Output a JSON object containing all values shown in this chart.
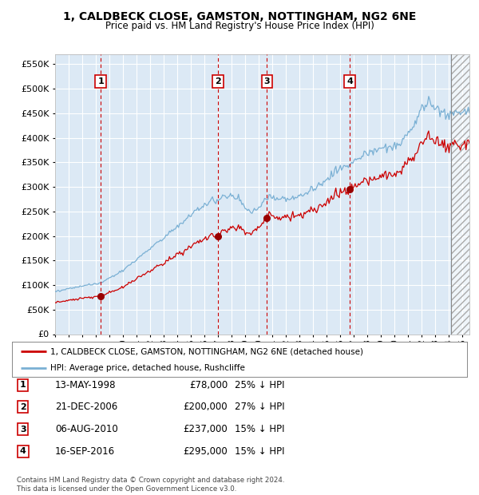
{
  "title": "1, CALDBECK CLOSE, GAMSTON, NOTTINGHAM, NG2 6NE",
  "subtitle": "Price paid vs. HM Land Registry's House Price Index (HPI)",
  "hpi_line_color": "#7ab0d4",
  "price_line_color": "#cc0000",
  "price_dot_color": "#990000",
  "plot_bg_color": "#dce9f5",
  "grid_color": "#ffffff",
  "dashed_color": "#cc0000",
  "fig_bg_color": "#ffffff",
  "transactions": [
    {
      "num": 1,
      "price": 78000,
      "x_year": 1998.36
    },
    {
      "num": 2,
      "price": 200000,
      "x_year": 2006.97
    },
    {
      "num": 3,
      "price": 237000,
      "x_year": 2010.6
    },
    {
      "num": 4,
      "price": 295000,
      "x_year": 2016.71
    }
  ],
  "legend_entries": [
    "1, CALDBECK CLOSE, GAMSTON, NOTTINGHAM, NG2 6NE (detached house)",
    "HPI: Average price, detached house, Rushcliffe"
  ],
  "table_rows": [
    {
      "num": 1,
      "date": "13-MAY-1998",
      "price": "£78,000",
      "note": "25% ↓ HPI"
    },
    {
      "num": 2,
      "date": "21-DEC-2006",
      "price": "£200,000",
      "note": "27% ↓ HPI"
    },
    {
      "num": 3,
      "date": "06-AUG-2010",
      "price": "£237,000",
      "note": "15% ↓ HPI"
    },
    {
      "num": 4,
      "date": "16-SEP-2016",
      "price": "£295,000",
      "note": "15% ↓ HPI"
    }
  ],
  "footer": "Contains HM Land Registry data © Crown copyright and database right 2024.\nThis data is licensed under the Open Government Licence v3.0.",
  "ylim": [
    0,
    570000
  ],
  "yticks": [
    0,
    50000,
    100000,
    150000,
    200000,
    250000,
    300000,
    350000,
    400000,
    450000,
    500000,
    550000
  ],
  "xlim_start": 1995.0,
  "xlim_end": 2025.5,
  "hatch_start": 2024.17
}
